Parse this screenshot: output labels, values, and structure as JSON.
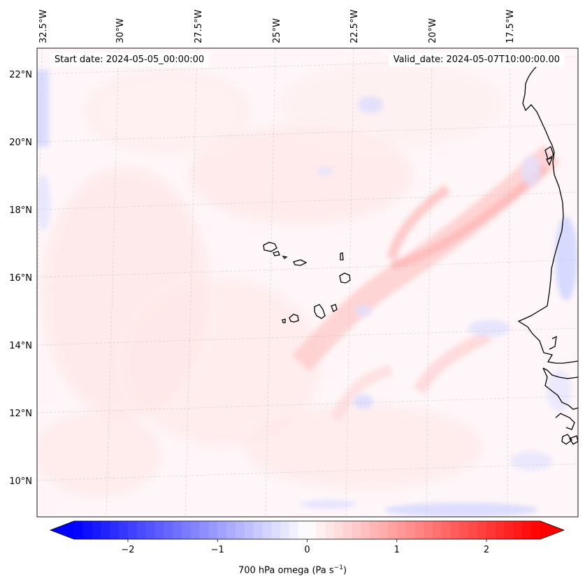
{
  "map": {
    "projection": "lambert-conformal",
    "lat_ticks": [
      "10°N",
      "12°N",
      "14°N",
      "16°N",
      "18°N",
      "20°N",
      "22°N"
    ],
    "lon_ticks": [
      "32.5°W",
      "30°W",
      "27.5°W",
      "25°W",
      "22.5°W",
      "20°W",
      "17.5°W"
    ],
    "lat_values": [
      10,
      12,
      14,
      16,
      18,
      20,
      22
    ],
    "lon_values": [
      -32.5,
      -30,
      -27.5,
      -25,
      -22.5,
      -20,
      -17.5
    ],
    "gridlines": true,
    "features": [
      "Cape Verde islands",
      "West African coastline (Mauritania, Senegal, Gambia, Guinea-Bissau)"
    ]
  },
  "annotations": {
    "start_date": "Start date: 2024-05-05_00:00:00",
    "valid_date": "Valid_date: 2024-05-07T10:00:00.00"
  },
  "colorbar": {
    "label_prefix": "700 hPa omega (Pa s",
    "label_exp": "−1",
    "label_suffix": ")",
    "ticks": [
      "−2",
      "−1",
      "0",
      "1",
      "2"
    ],
    "tick_values": [
      -2,
      -1,
      0,
      1,
      2
    ],
    "range": [
      -2.6,
      2.6
    ],
    "extend": "both",
    "colormap": "bwr",
    "colors": {
      "min": "#0000ff",
      "mid": "#ffffff",
      "max": "#ff0000"
    }
  }
}
